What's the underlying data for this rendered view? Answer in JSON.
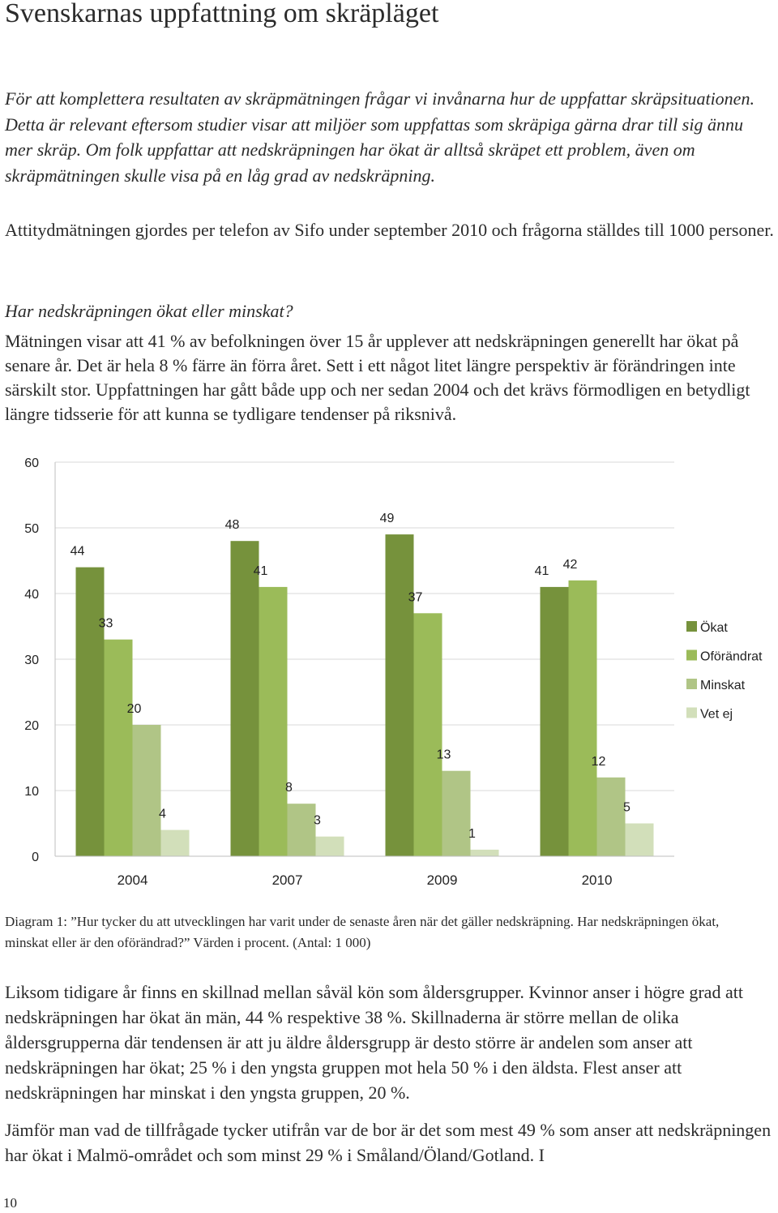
{
  "title": "Svenskarnas uppfattning om skräpläget",
  "intro": "För att komplettera resultaten av skräpmätningen frågar vi invånarna hur de uppfattar skräpsituationen. Detta är relevant eftersom studier visar att miljöer som uppfattas som skräpiga gärna drar till sig ännu mer skräp. Om folk uppfattar att nedskräpningen har ökat är alltså skräpet ett problem, även om skräpmätningen skulle visa på en låg grad av nedskräpning.",
  "method": "Attitydmätningen gjordes per telefon av Sifo under september 2010 och frågorna ställdes till 1000 personer.",
  "question_heading": "Har nedskräpningen ökat eller minskat?",
  "finding": "Mätningen visar att 41 % av befolkningen över 15 år upplever att nedskräpningen generellt har ökat på senare år. Det är hela 8 % färre än förra året. Sett i ett något litet längre perspektiv är förändringen inte särskilt stor. Uppfattningen har gått både upp och ner sedan 2004 och det krävs förmodligen en betydligt längre tidsserie för att kunna se tydligare tendenser på riksnivå.",
  "chart_data": {
    "type": "bar",
    "categories": [
      "2004",
      "2007",
      "2009",
      "2010"
    ],
    "series": [
      {
        "name": "Ökat",
        "values": [
          44,
          48,
          49,
          41
        ],
        "color": "#76923c"
      },
      {
        "name": "Oförändrat",
        "values": [
          33,
          41,
          37,
          42
        ],
        "color": "#9bbb59"
      },
      {
        "name": "Minskat",
        "values": [
          20,
          8,
          13,
          12
        ],
        "color": "#b0c586"
      },
      {
        "name": "Vet ej",
        "values": [
          4,
          3,
          1,
          5
        ],
        "color": "#d2dfba"
      }
    ],
    "ylim": [
      0,
      60
    ],
    "yticks": [
      0,
      10,
      20,
      30,
      40,
      50,
      60
    ],
    "grid": true,
    "legend": "right",
    "data_labels": true
  },
  "caption": "Diagram 1: ”Hur tycker du att utvecklingen har varit under de senaste åren när det gäller nedskräpning. Har nedskräpningen ökat, minskat eller är den oförändrad?” Värden i procent. (Antal: 1 000)",
  "para3": "Liksom tidigare år finns en skillnad mellan såväl kön som åldersgrupper. Kvinnor anser i högre grad att nedskräpningen har ökat än män, 44 % respektive 38 %. Skillnaderna är större mellan de olika åldersgrupperna där tendensen är att ju äldre åldersgrupp är desto större är andelen som anser att nedskräpningen har ökat; 25 % i den yngsta gruppen mot hela 50 % i den äldsta. Flest anser att nedskräpningen har minskat i den yngsta gruppen, 20 %.",
  "para4": "Jämför man vad de tillfrågade tycker utifrån var de bor är det som mest 49 % som anser att nedskräpningen har ökat i Malmö-området och som minst 29 % i Småland/Öland/Gotland. I",
  "page_number": "10"
}
